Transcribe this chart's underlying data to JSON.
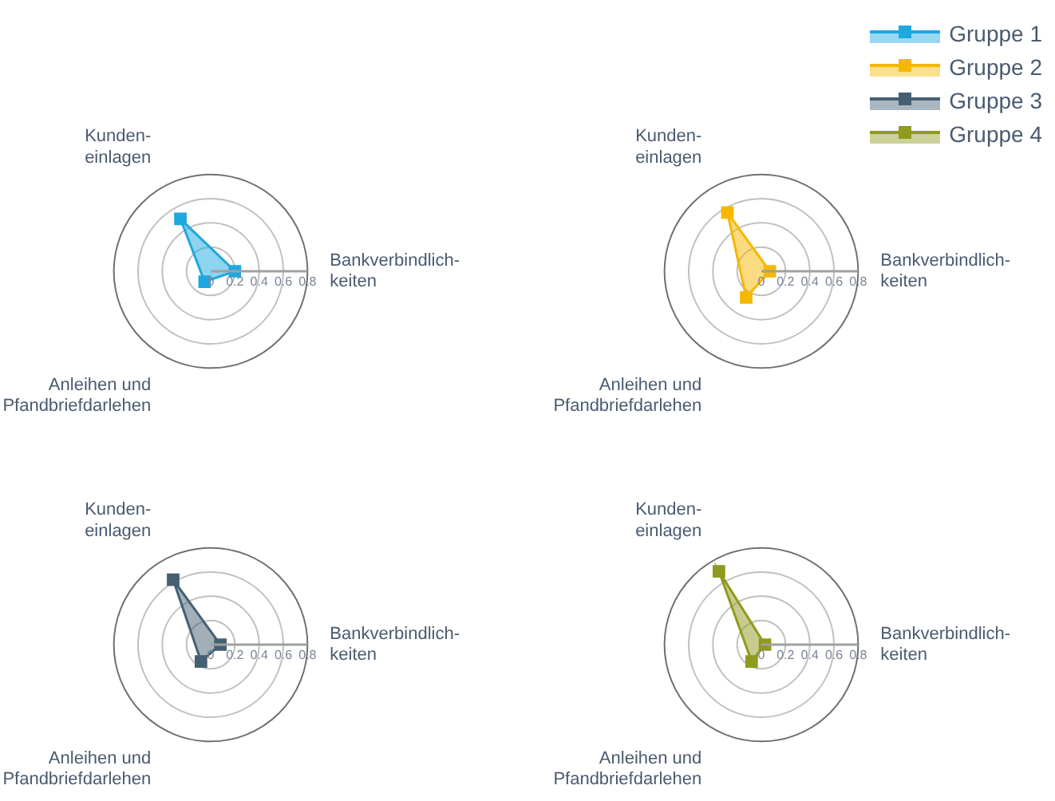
{
  "chart_data": [
    {
      "type": "radar",
      "categories": [
        "Bankverbindlich-\nkeiten",
        "Anleihen und\nPfandbriefdarlehen",
        "Kunden-\neinlagen"
      ],
      "ylim": [
        0,
        0.8
      ],
      "yticks": [
        0,
        0.2,
        0.4,
        0.6,
        0.8
      ],
      "grid": true,
      "marker": "square",
      "legend": "top right",
      "series": [
        {
          "name": "Gruppe 1",
          "color": "#1ea8e0",
          "values": [
            0.2,
            0.1,
            0.5
          ]
        }
      ]
    },
    {
      "type": "radar",
      "categories": [
        "Bankverbindlich-\nkeiten",
        "Anleihen und\nPfandbriefdarlehen",
        "Kunden-\neinlagen"
      ],
      "ylim": [
        0,
        0.8
      ],
      "yticks": [
        0,
        0.2,
        0.4,
        0.6,
        0.8
      ],
      "grid": true,
      "marker": "square",
      "legend": "top right",
      "series": [
        {
          "name": "Gruppe 2",
          "color": "#f5b800",
          "values": [
            0.07,
            0.25,
            0.56
          ]
        }
      ]
    },
    {
      "type": "radar",
      "categories": [
        "Bankverbindlich-\nkeiten",
        "Anleihen und\nPfandbriefdarlehen",
        "Kunden-\neinlagen"
      ],
      "ylim": [
        0,
        0.8
      ],
      "yticks": [
        0,
        0.2,
        0.4,
        0.6,
        0.8
      ],
      "grid": true,
      "marker": "square",
      "legend": "top right",
      "series": [
        {
          "name": "Gruppe 3",
          "color": "#456073",
          "values": [
            0.08,
            0.16,
            0.62
          ]
        }
      ]
    },
    {
      "type": "radar",
      "categories": [
        "Bankverbindlich-\nkeiten",
        "Anleihen und\nPfandbriefdarlehen",
        "Kunden-\neinlagen"
      ],
      "ylim": [
        0,
        0.8
      ],
      "yticks": [
        0,
        0.2,
        0.4,
        0.6,
        0.8
      ],
      "grid": true,
      "marker": "square",
      "legend": "top right",
      "series": [
        {
          "name": "Gruppe 4",
          "color": "#8f9a1e",
          "values": [
            0.03,
            0.16,
            0.7
          ]
        }
      ]
    }
  ]
}
